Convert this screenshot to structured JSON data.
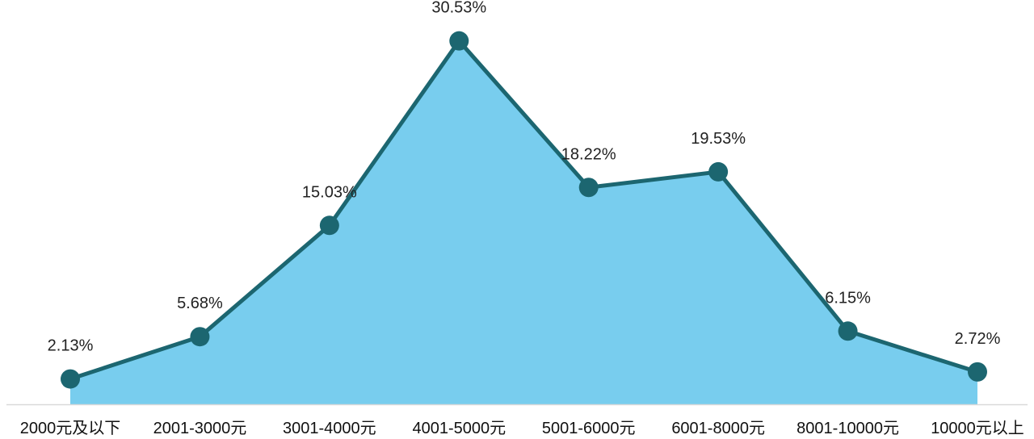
{
  "chart_data": {
    "type": "area",
    "categories": [
      "2000元及以下",
      "2001-3000元",
      "3001-4000元",
      "4001-5000元",
      "5001-6000元",
      "6001-8000元",
      "8001-10000元",
      "10000元以上"
    ],
    "values": [
      2.13,
      5.68,
      15.03,
      30.53,
      18.22,
      19.53,
      6.15,
      2.72
    ],
    "data_labels": [
      "2.13%",
      "5.68%",
      "15.03%",
      "30.53%",
      "18.22%",
      "19.53%",
      "6.15%",
      "2.72%"
    ],
    "ylim": [
      0,
      32
    ],
    "grid": false,
    "legend": "none",
    "colors": {
      "area_fill": "#78CDEE",
      "line": "#1C6670",
      "marker": "#1C6670",
      "axis": "#D9D9D9"
    }
  }
}
